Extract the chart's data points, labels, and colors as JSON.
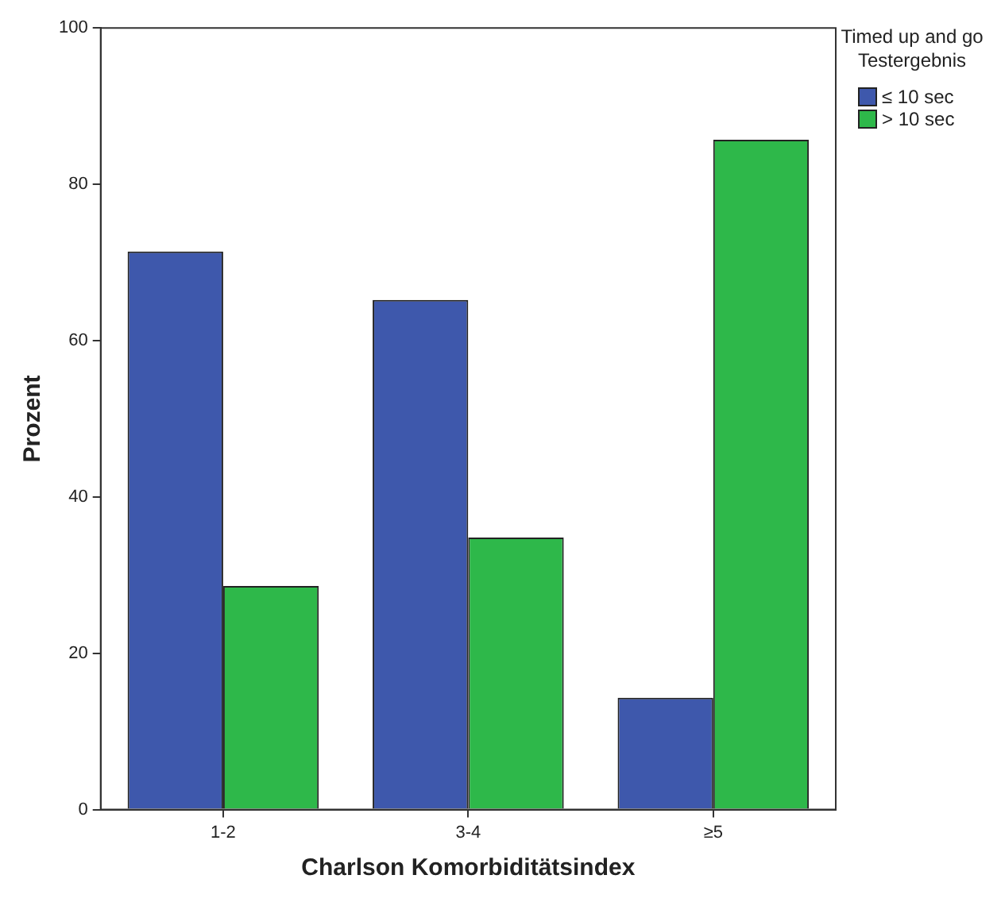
{
  "chart_data": {
    "type": "bar",
    "xlabel": "Charlson Komorbiditätsindex",
    "ylabel": "Prozent",
    "legend_title": "Timed up and go Testergebnis",
    "categories": [
      "1-2",
      "3-4",
      "≥5"
    ],
    "series": [
      {
        "name": "≤ 10 sec",
        "color": "#3e58ac",
        "values": [
          71.4,
          65.2,
          14.3
        ]
      },
      {
        "name": "> 10 sec",
        "color": "#2eb84a",
        "values": [
          28.6,
          34.8,
          85.7
        ]
      }
    ],
    "ylim": [
      0,
      100
    ],
    "yticks": [
      0,
      20,
      40,
      60,
      80,
      100
    ],
    "grid": false,
    "legend": "top right"
  }
}
